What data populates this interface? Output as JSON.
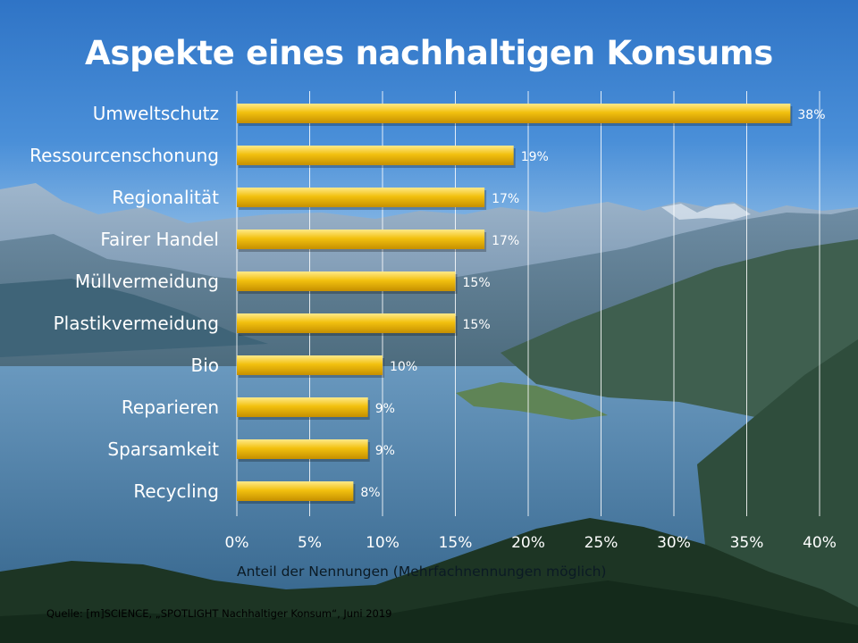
{
  "chart_data": {
    "type": "bar",
    "orientation": "horizontal",
    "title": "Aspekte eines nachhaltigen Konsums",
    "xlabel": "Anteil der Nennungen (Mehrfachnennungen  möglich)",
    "ylabel": "",
    "categories": [
      "Umweltschutz",
      "Ressourcenschonung",
      "Regionalität",
      "Fairer Handel",
      "Müllvermeidung",
      "Plastikvermeidung",
      "Bio",
      "Reparieren",
      "Sparsamkeit",
      "Recycling"
    ],
    "values": [
      38,
      19,
      17,
      17,
      15,
      15,
      10,
      9,
      9,
      8
    ],
    "value_labels": [
      "38%",
      "19%",
      "17%",
      "17%",
      "15%",
      "15%",
      "10%",
      "9%",
      "9%",
      "8%"
    ],
    "xlim": [
      0,
      40
    ],
    "x_ticks": [
      0,
      5,
      10,
      15,
      20,
      25,
      30,
      35,
      40
    ],
    "x_tick_labels": [
      "0%",
      "5%",
      "10%",
      "15%",
      "20%",
      "25%",
      "30%",
      "35%",
      "40%"
    ],
    "grid": true,
    "bar_color": "#f2c10f",
    "bar_highlight": "#ffe98a",
    "bar_shadow": "#c58f00"
  },
  "source": "Quelle: [m]SCIENCE, „SPOTLIGHT Nachhaltiger Konsum“, Juni 2019"
}
